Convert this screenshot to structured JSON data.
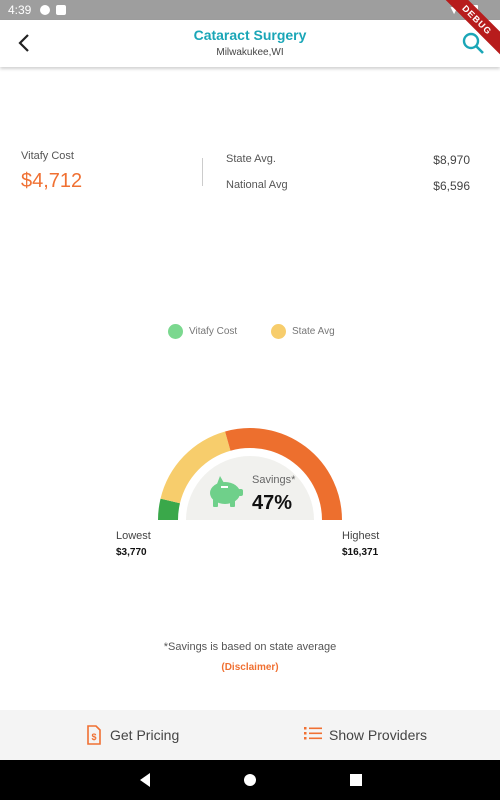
{
  "status": {
    "time": "4:39"
  },
  "debug": "DEBUG",
  "header": {
    "title": "Cataract Surgery",
    "subtitle": "Milwakukee,WI"
  },
  "costs": {
    "vitafy_label": "Vitafy Cost",
    "vitafy_value": "$4,712",
    "state_label": "State Avg.",
    "state_value": "$8,970",
    "national_label": "National Avg",
    "national_value": "$6,596"
  },
  "legend": [
    {
      "label": "Vitafy Cost",
      "color": "#7bd88f"
    },
    {
      "label": "State Avg",
      "color": "#f7cd6c"
    }
  ],
  "gauge": {
    "savings_label": "Savings*",
    "savings_pct": "47%",
    "lowest": 3770,
    "highest": 16371,
    "vitafy": 4712,
    "state": 8970,
    "colors": {
      "vitafy": "#3aa84a",
      "state": "#f7cd6c",
      "rest": "#ed6f2e",
      "center": "#f1f1ee",
      "piggy": "#6fd08a"
    }
  },
  "extremes": {
    "lowest_label": "Lowest",
    "lowest_value": "$3,770",
    "highest_label": "Highest",
    "highest_value": "$16,371"
  },
  "footer": {
    "note": "*Savings is based on state average",
    "disclaimer": "(Disclaimer)"
  },
  "bottom": {
    "pricing_label": "Get Pricing",
    "providers_label": "Show Providers"
  },
  "accent": {
    "teal": "#1aa6b7",
    "orange": "#f07032"
  }
}
